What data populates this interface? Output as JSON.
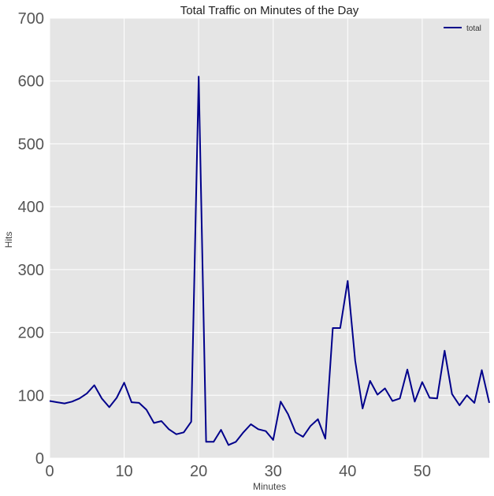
{
  "chart_data": {
    "type": "line",
    "title": "Total Traffic on Minutes of the Day",
    "xlabel": "Minutes",
    "ylabel": "Hits",
    "xlim": [
      0,
      59
    ],
    "ylim": [
      0,
      700
    ],
    "x_ticks": [
      0,
      10,
      20,
      30,
      40,
      50
    ],
    "y_ticks": [
      0,
      100,
      200,
      300,
      400,
      500,
      600,
      700
    ],
    "grid": true,
    "legend_position": "top-right",
    "series": [
      {
        "name": "total",
        "color": "#00008b",
        "x": [
          0,
          1,
          2,
          3,
          4,
          5,
          6,
          7,
          8,
          9,
          10,
          11,
          12,
          13,
          14,
          15,
          16,
          17,
          18,
          19,
          20,
          21,
          22,
          23,
          24,
          25,
          26,
          27,
          28,
          29,
          30,
          31,
          32,
          33,
          34,
          35,
          36,
          37,
          38,
          39,
          40,
          41,
          42,
          43,
          44,
          45,
          46,
          47,
          48,
          49,
          50,
          51,
          52,
          53,
          54,
          55,
          56,
          57,
          58,
          59
        ],
        "values": [
          91,
          89,
          87,
          90,
          95,
          103,
          116,
          95,
          81,
          96,
          120,
          89,
          88,
          77,
          56,
          59,
          46,
          38,
          41,
          58,
          607,
          26,
          26,
          45,
          21,
          26,
          41,
          54,
          46,
          43,
          29,
          90,
          70,
          41,
          34,
          51,
          62,
          31,
          207,
          207,
          282,
          155,
          79,
          123,
          101,
          111,
          91,
          95,
          141,
          90,
          121,
          96,
          95,
          171,
          102,
          84,
          100,
          88,
          140,
          88
        ]
      }
    ]
  },
  "colors": {
    "plot_background": "#e5e5e5",
    "grid": "#ffffff"
  }
}
